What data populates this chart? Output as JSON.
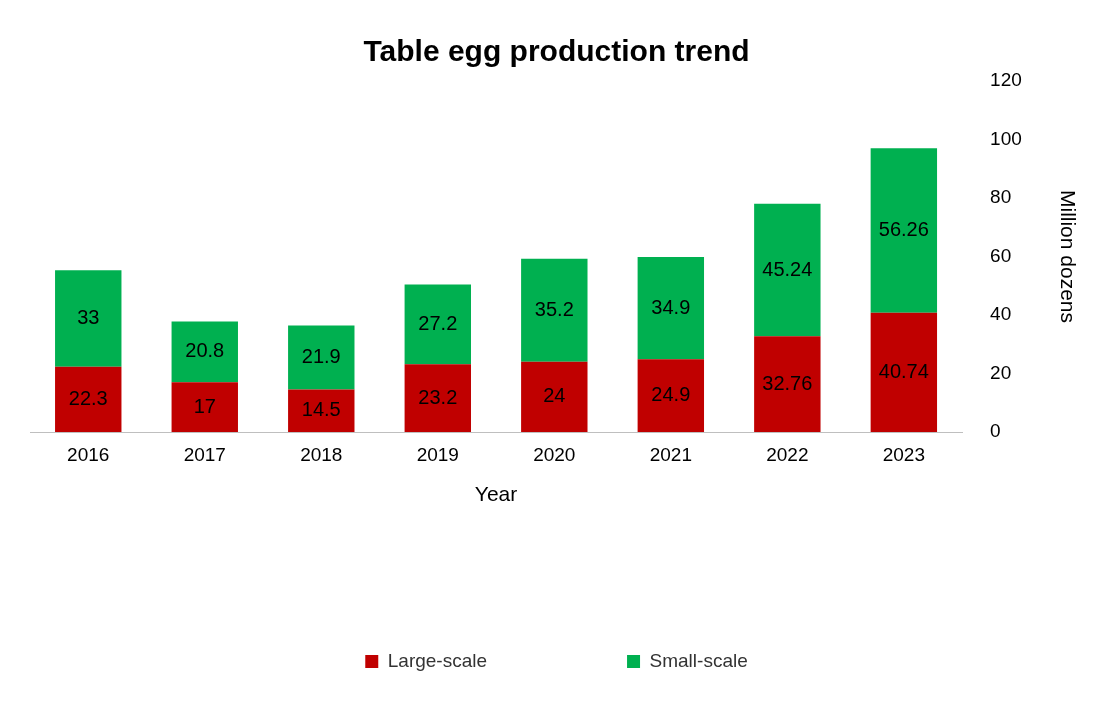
{
  "chart_data": {
    "type": "bar",
    "title": "Table egg production trend",
    "xlabel": "Year",
    "ylabel": "Million dozens",
    "categories": [
      "2016",
      "2017",
      "2018",
      "2019",
      "2020",
      "2021",
      "2022",
      "2023"
    ],
    "series": [
      {
        "name": "Large-scale",
        "color": "#c00000",
        "values": [
          22.3,
          17,
          14.5,
          23.2,
          24,
          24.9,
          32.76,
          40.74
        ]
      },
      {
        "name": "Small-scale",
        "color": "#00b050",
        "values": [
          33,
          20.8,
          21.9,
          27.2,
          35.2,
          34.9,
          45.24,
          56.26
        ]
      }
    ],
    "stacked": true,
    "ylim": [
      0,
      120
    ],
    "yticks": [
      0,
      20,
      40,
      60,
      80,
      100,
      120
    ],
    "grid": false,
    "legend": "bottom",
    "data_labels": true
  }
}
